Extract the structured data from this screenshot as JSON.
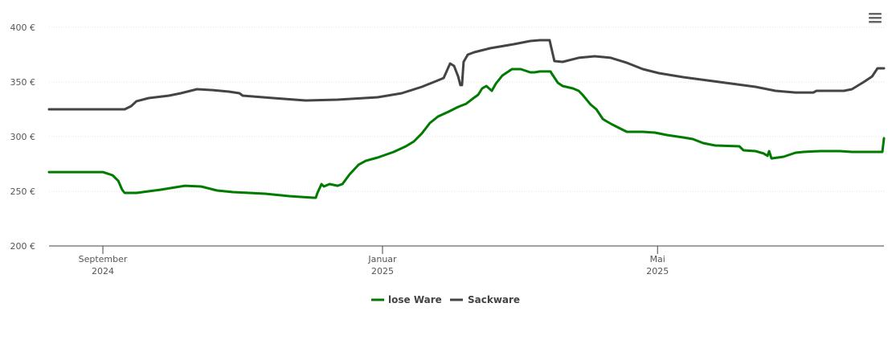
{
  "chart_data": {
    "type": "line",
    "title": "",
    "xlabel": "",
    "ylabel": "",
    "x_unit": "days since 2024-09-01",
    "xlim": [
      -23.5,
      340.8
    ],
    "ylim": [
      200,
      400
    ],
    "grid": true,
    "legend_position": "bottom-center",
    "y_ticks": [
      {
        "value": 200,
        "label": "200 €"
      },
      {
        "value": 250,
        "label": "250 €"
      },
      {
        "value": 300,
        "label": "300 €"
      },
      {
        "value": 350,
        "label": "350 €"
      },
      {
        "value": 400,
        "label": "400 €"
      }
    ],
    "x_ticks": [
      {
        "value": 0,
        "label": "September",
        "sublabel": "2024"
      },
      {
        "value": 122,
        "label": "Januar",
        "sublabel": "2025"
      },
      {
        "value": 242,
        "label": "Mai",
        "sublabel": "2025"
      }
    ],
    "series": [
      {
        "name": "lose Ware",
        "color": "#007a00",
        "points": [
          [
            -23.5,
            267.6
          ],
          [
            0,
            267.6
          ],
          [
            4.2,
            264.7
          ],
          [
            6.7,
            259.6
          ],
          [
            8.4,
            251.5
          ],
          [
            9.5,
            248.5
          ],
          [
            14.7,
            248.5
          ],
          [
            25.2,
            251.5
          ],
          [
            35.8,
            255.1
          ],
          [
            42.8,
            254.4
          ],
          [
            49.8,
            250.7
          ],
          [
            56.8,
            249.3
          ],
          [
            63.8,
            248.5
          ],
          [
            70.8,
            247.8
          ],
          [
            81.3,
            245.6
          ],
          [
            91.9,
            244.1
          ],
          [
            92.9,
            244.1
          ],
          [
            93.6,
            248.5
          ],
          [
            95.4,
            256.6
          ],
          [
            96.4,
            254.4
          ],
          [
            98.9,
            256.6
          ],
          [
            102.4,
            255.1
          ],
          [
            104.5,
            256.6
          ],
          [
            107.6,
            265.4
          ],
          [
            111.5,
            274.2
          ],
          [
            114.7,
            277.9
          ],
          [
            119.9,
            280.9
          ],
          [
            126.9,
            286.0
          ],
          [
            132.2,
            291.2
          ],
          [
            135.7,
            295.6
          ],
          [
            139.2,
            303.0
          ],
          [
            142.7,
            312.5
          ],
          [
            146.2,
            318.4
          ],
          [
            150.8,
            322.8
          ],
          [
            155.0,
            327.2
          ],
          [
            158.5,
            330.1
          ],
          [
            161.3,
            334.6
          ],
          [
            163.7,
            338.2
          ],
          [
            165.5,
            344.1
          ],
          [
            167.3,
            346.3
          ],
          [
            169.7,
            341.9
          ],
          [
            171.5,
            348.5
          ],
          [
            174.3,
            355.9
          ],
          [
            178.5,
            361.8
          ],
          [
            182.3,
            361.8
          ],
          [
            186.5,
            358.8
          ],
          [
            188.3,
            358.8
          ],
          [
            190.7,
            359.6
          ],
          [
            195.3,
            359.6
          ],
          [
            195.7,
            358.1
          ],
          [
            198.5,
            349.3
          ],
          [
            200.6,
            346.3
          ],
          [
            205.1,
            344.1
          ],
          [
            207.6,
            341.9
          ],
          [
            209.3,
            338.2
          ],
          [
            212.8,
            329.4
          ],
          [
            215.3,
            325.0
          ],
          [
            218.1,
            316.2
          ],
          [
            219.8,
            314.0
          ],
          [
            222.3,
            311.0
          ],
          [
            225.1,
            308.1
          ],
          [
            228.6,
            304.4
          ],
          [
            235.6,
            304.4
          ],
          [
            240.9,
            303.7
          ],
          [
            246.1,
            301.5
          ],
          [
            253.2,
            299.3
          ],
          [
            257.4,
            297.8
          ],
          [
            261.9,
            294.1
          ],
          [
            267.2,
            291.9
          ],
          [
            277.7,
            291.2
          ],
          [
            279.5,
            287.5
          ],
          [
            284.7,
            286.8
          ],
          [
            288.2,
            284.7
          ],
          [
            290.0,
            282.4
          ],
          [
            290.7,
            286.8
          ],
          [
            291.7,
            280.1
          ],
          [
            297.0,
            281.6
          ],
          [
            302.2,
            285.3
          ],
          [
            305.7,
            286.0
          ],
          [
            312.8,
            286.8
          ],
          [
            321.5,
            286.8
          ],
          [
            326.8,
            286.0
          ],
          [
            336.6,
            286.0
          ],
          [
            340.1,
            286.0
          ],
          [
            340.8,
            298.5
          ]
        ]
      },
      {
        "name": "Sackware",
        "color": "#444444",
        "points": [
          [
            -23.5,
            325.0
          ],
          [
            9.5,
            325.0
          ],
          [
            12.3,
            327.9
          ],
          [
            14.7,
            332.4
          ],
          [
            20.0,
            335.3
          ],
          [
            28.8,
            337.5
          ],
          [
            34.0,
            339.7
          ],
          [
            41.0,
            343.4
          ],
          [
            48.0,
            342.6
          ],
          [
            55.0,
            341.2
          ],
          [
            59.6,
            339.7
          ],
          [
            61.0,
            337.5
          ],
          [
            74.3,
            335.3
          ],
          [
            88.4,
            333.1
          ],
          [
            102.4,
            333.8
          ],
          [
            119.9,
            336.0
          ],
          [
            130.4,
            339.7
          ],
          [
            139.2,
            345.6
          ],
          [
            146.2,
            351.5
          ],
          [
            148.7,
            353.7
          ],
          [
            150.1,
            360.3
          ],
          [
            151.5,
            366.9
          ],
          [
            153.2,
            364.7
          ],
          [
            155.0,
            355.1
          ],
          [
            156.0,
            347.1
          ],
          [
            156.7,
            347.1
          ],
          [
            157.4,
            368.4
          ],
          [
            159.2,
            375.0
          ],
          [
            162.0,
            377.2
          ],
          [
            169.0,
            380.9
          ],
          [
            179.5,
            384.6
          ],
          [
            186.5,
            387.5
          ],
          [
            190.7,
            388.2
          ],
          [
            194.9,
            388.2
          ],
          [
            197.0,
            369.1
          ],
          [
            200.6,
            368.4
          ],
          [
            207.6,
            372.1
          ],
          [
            214.6,
            373.5
          ],
          [
            221.6,
            372.1
          ],
          [
            228.6,
            367.6
          ],
          [
            235.6,
            361.8
          ],
          [
            242.6,
            358.1
          ],
          [
            253.2,
            354.4
          ],
          [
            263.7,
            351.5
          ],
          [
            274.2,
            348.5
          ],
          [
            284.7,
            345.6
          ],
          [
            293.5,
            341.9
          ],
          [
            302.2,
            340.4
          ],
          [
            310.0,
            340.4
          ],
          [
            311.4,
            341.9
          ],
          [
            323.3,
            341.9
          ],
          [
            326.8,
            343.4
          ],
          [
            332.0,
            350.0
          ],
          [
            335.6,
            355.1
          ],
          [
            338.0,
            362.5
          ],
          [
            340.8,
            362.5
          ]
        ]
      }
    ]
  },
  "menu": {
    "icon": "hamburger-menu-icon"
  }
}
